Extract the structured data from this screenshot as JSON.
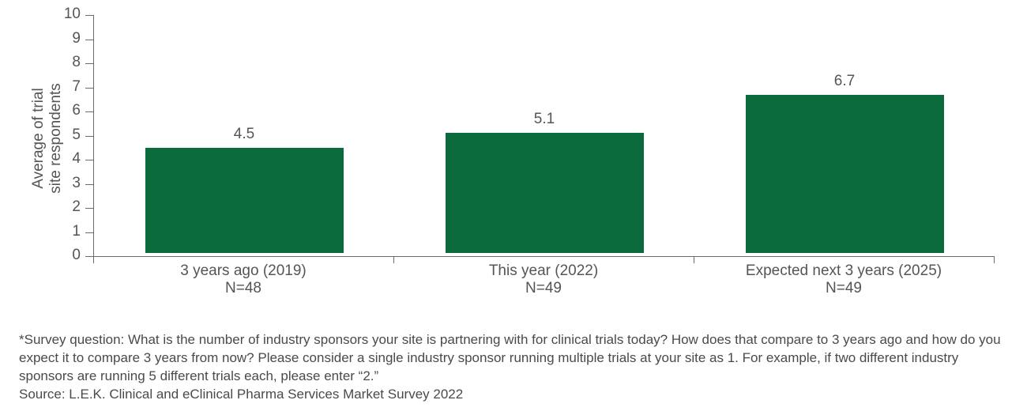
{
  "chart_data": {
    "type": "bar",
    "title": "",
    "xlabel": "",
    "ylabel": "Average of trial site respondents",
    "ylabel_lines": [
      "Average of trial",
      "site respondents"
    ],
    "categories": [
      "3 years ago (2019)",
      "This year (2022)",
      "Expected next 3 years (2025)"
    ],
    "sample_sizes": [
      "N=48",
      "N=49",
      "N=49"
    ],
    "values": [
      4.5,
      5.1,
      6.7
    ],
    "value_labels": [
      "4.5",
      "5.1",
      "6.7"
    ],
    "ylim": [
      0,
      10
    ],
    "yticks": [
      "0",
      "1",
      "2",
      "3",
      "4",
      "5",
      "6",
      "7",
      "8",
      "9",
      "10"
    ],
    "grid": false,
    "legend": null,
    "bar_color": "#0b6b3d"
  },
  "footnote": {
    "survey_question": "*Survey question: What is the number of industry sponsors your site is partnering with for clinical trials today? How does that compare to 3 years ago and how do you expect it to compare 3 years from now? Please consider a single industry sponsor running multiple trials at your site as 1. For example, if two different industry sponsors are running 5 different trials each, please enter “2.”",
    "source": "Source: L.E.K. Clinical and eClinical Pharma Services Market Survey 2022"
  }
}
